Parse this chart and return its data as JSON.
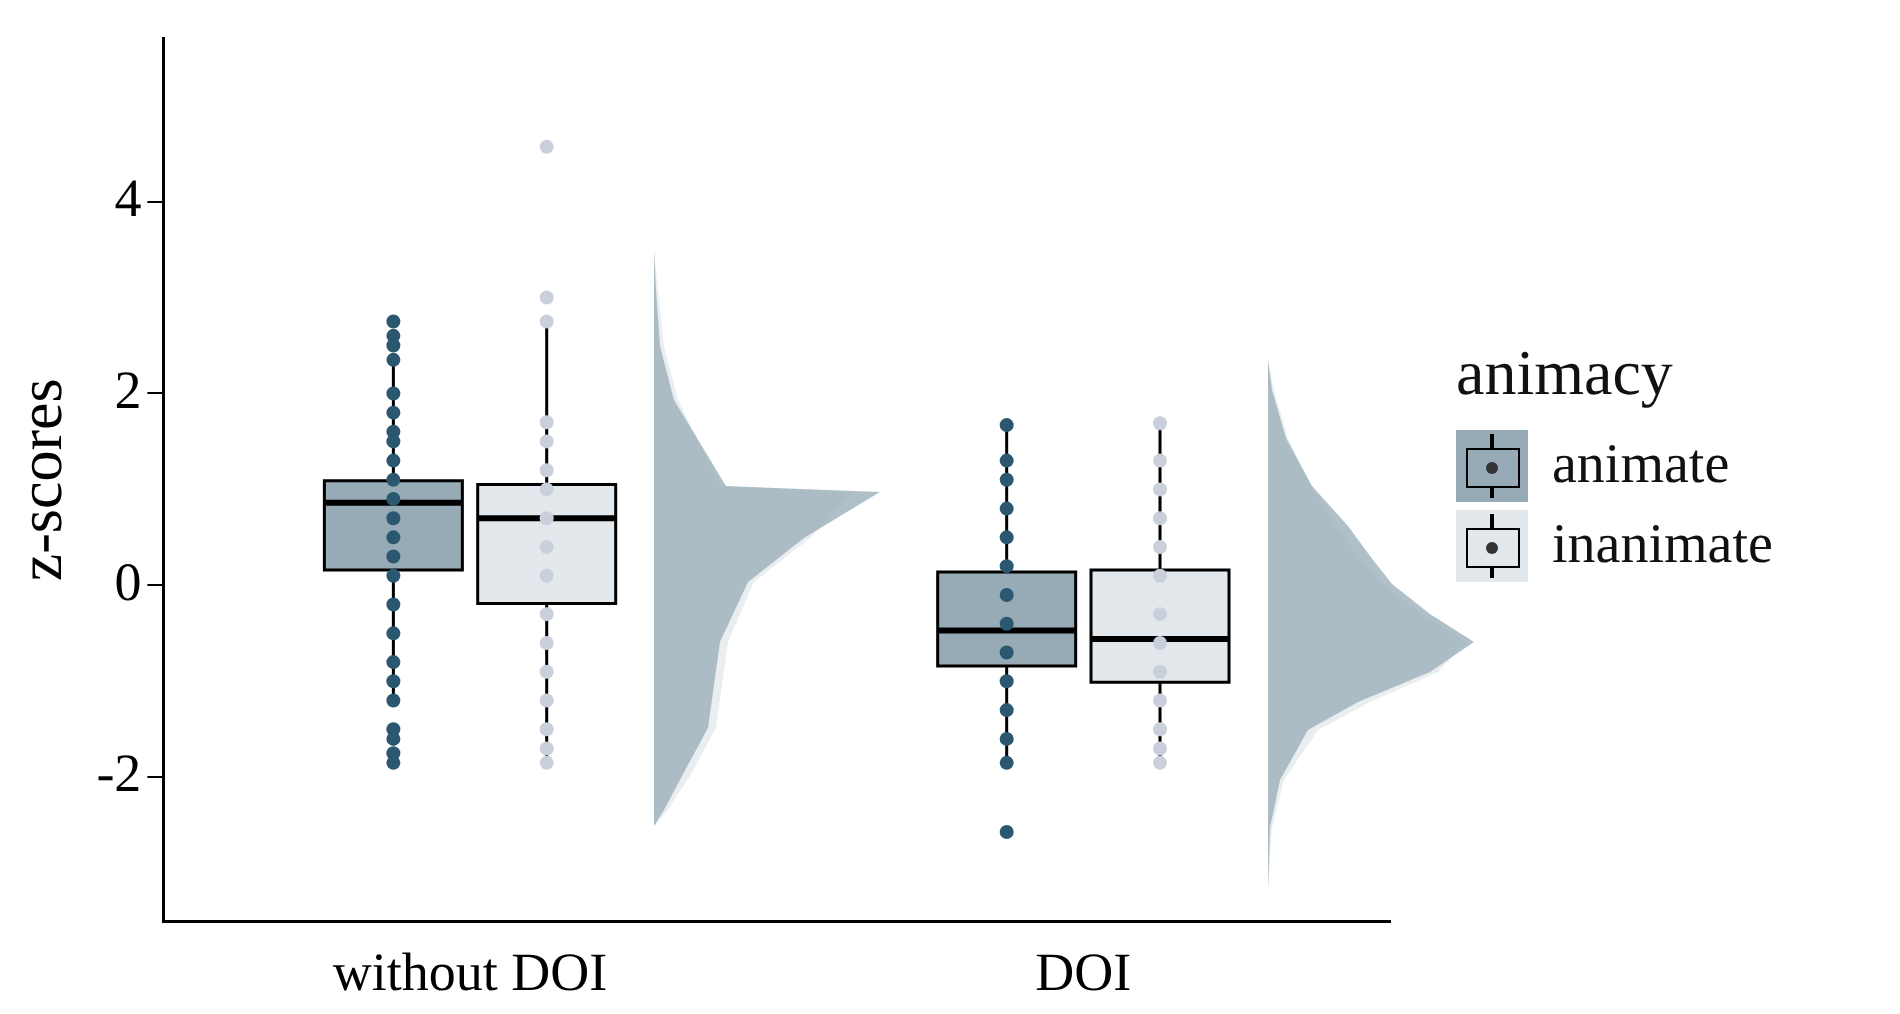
{
  "chart_data": {
    "type": "box",
    "ylabel": "z-scores",
    "legend_title": "animacy",
    "legend": "right",
    "categories": [
      "without DOI",
      "DOI"
    ],
    "ylim": [
      -3.5,
      5.7
    ],
    "yticks": [
      -2,
      0,
      2,
      4
    ],
    "grid": false,
    "series": [
      {
        "name": "animate",
        "color": "#96abb5",
        "boxes": [
          {
            "low": -1.17,
            "q1": 0.16,
            "median": 0.86,
            "q3": 1.09,
            "high": 2.37
          },
          {
            "low": -1.85,
            "q1": -0.84,
            "median": -0.47,
            "q3": 0.14,
            "high": 1.67
          }
        ]
      },
      {
        "name": "inanimate",
        "color": "#e3e8ec",
        "boxes": [
          {
            "low": -1.85,
            "q1": -0.19,
            "median": 0.7,
            "q3": 1.05,
            "high": 2.76
          },
          {
            "low": -1.85,
            "q1": -1.01,
            "median": -0.56,
            "q3": 0.16,
            "high": 1.69
          }
        ]
      },
      {
        "type": "scatter",
        "color": "#2b5870",
        "x": [
          "without DOI",
          "without DOI",
          "without DOI",
          "without DOI",
          "without DOI",
          "without DOI",
          "without DOI",
          "without DOI",
          "without DOI",
          "without DOI",
          "without DOI",
          "without DOI",
          "without DOI",
          "without DOI",
          "without DOI",
          "without DOI",
          "without DOI",
          "without DOI",
          "without DOI",
          "without DOI",
          "without DOI",
          "without DOI",
          "without DOI",
          "without DOI",
          "DOI",
          "DOI",
          "DOI",
          "DOI",
          "DOI",
          "DOI",
          "DOI",
          "DOI",
          "DOI",
          "DOI",
          "DOI",
          "DOI",
          "DOI",
          "DOI"
        ],
        "values": [
          2.75,
          2.6,
          2.5,
          2.35,
          2.0,
          1.8,
          1.6,
          1.5,
          1.3,
          1.1,
          0.9,
          0.7,
          0.5,
          0.3,
          0.1,
          -0.2,
          -0.5,
          -0.8,
          -1.0,
          -1.2,
          -1.5,
          -1.6,
          -1.75,
          -1.85,
          1.67,
          1.3,
          1.1,
          0.8,
          0.5,
          0.2,
          -0.1,
          -0.4,
          -0.7,
          -1.0,
          -1.3,
          -1.6,
          -1.85,
          -2.57
        ]
      },
      {
        "type": "scatter",
        "color": "#c9d0db",
        "x": [
          "without DOI",
          "without DOI",
          "without DOI",
          "without DOI",
          "without DOI",
          "without DOI",
          "without DOI",
          "without DOI",
          "without DOI",
          "without DOI",
          "without DOI",
          "without DOI",
          "without DOI",
          "without DOI",
          "without DOI",
          "without DOI",
          "without DOI",
          "DOI",
          "DOI",
          "DOI",
          "DOI",
          "DOI",
          "DOI",
          "DOI",
          "DOI",
          "DOI",
          "DOI",
          "DOI",
          "DOI",
          "DOI"
        ],
        "values": [
          4.57,
          3.0,
          2.75,
          1.7,
          1.5,
          1.2,
          1.0,
          0.7,
          0.4,
          0.1,
          -0.3,
          -0.6,
          -0.9,
          -1.2,
          -1.5,
          -1.7,
          -1.85,
          1.69,
          1.3,
          1.0,
          0.7,
          0.4,
          0.1,
          -0.3,
          -0.6,
          -0.9,
          -1.2,
          -1.5,
          -1.7,
          -1.85
        ]
      }
    ]
  }
}
